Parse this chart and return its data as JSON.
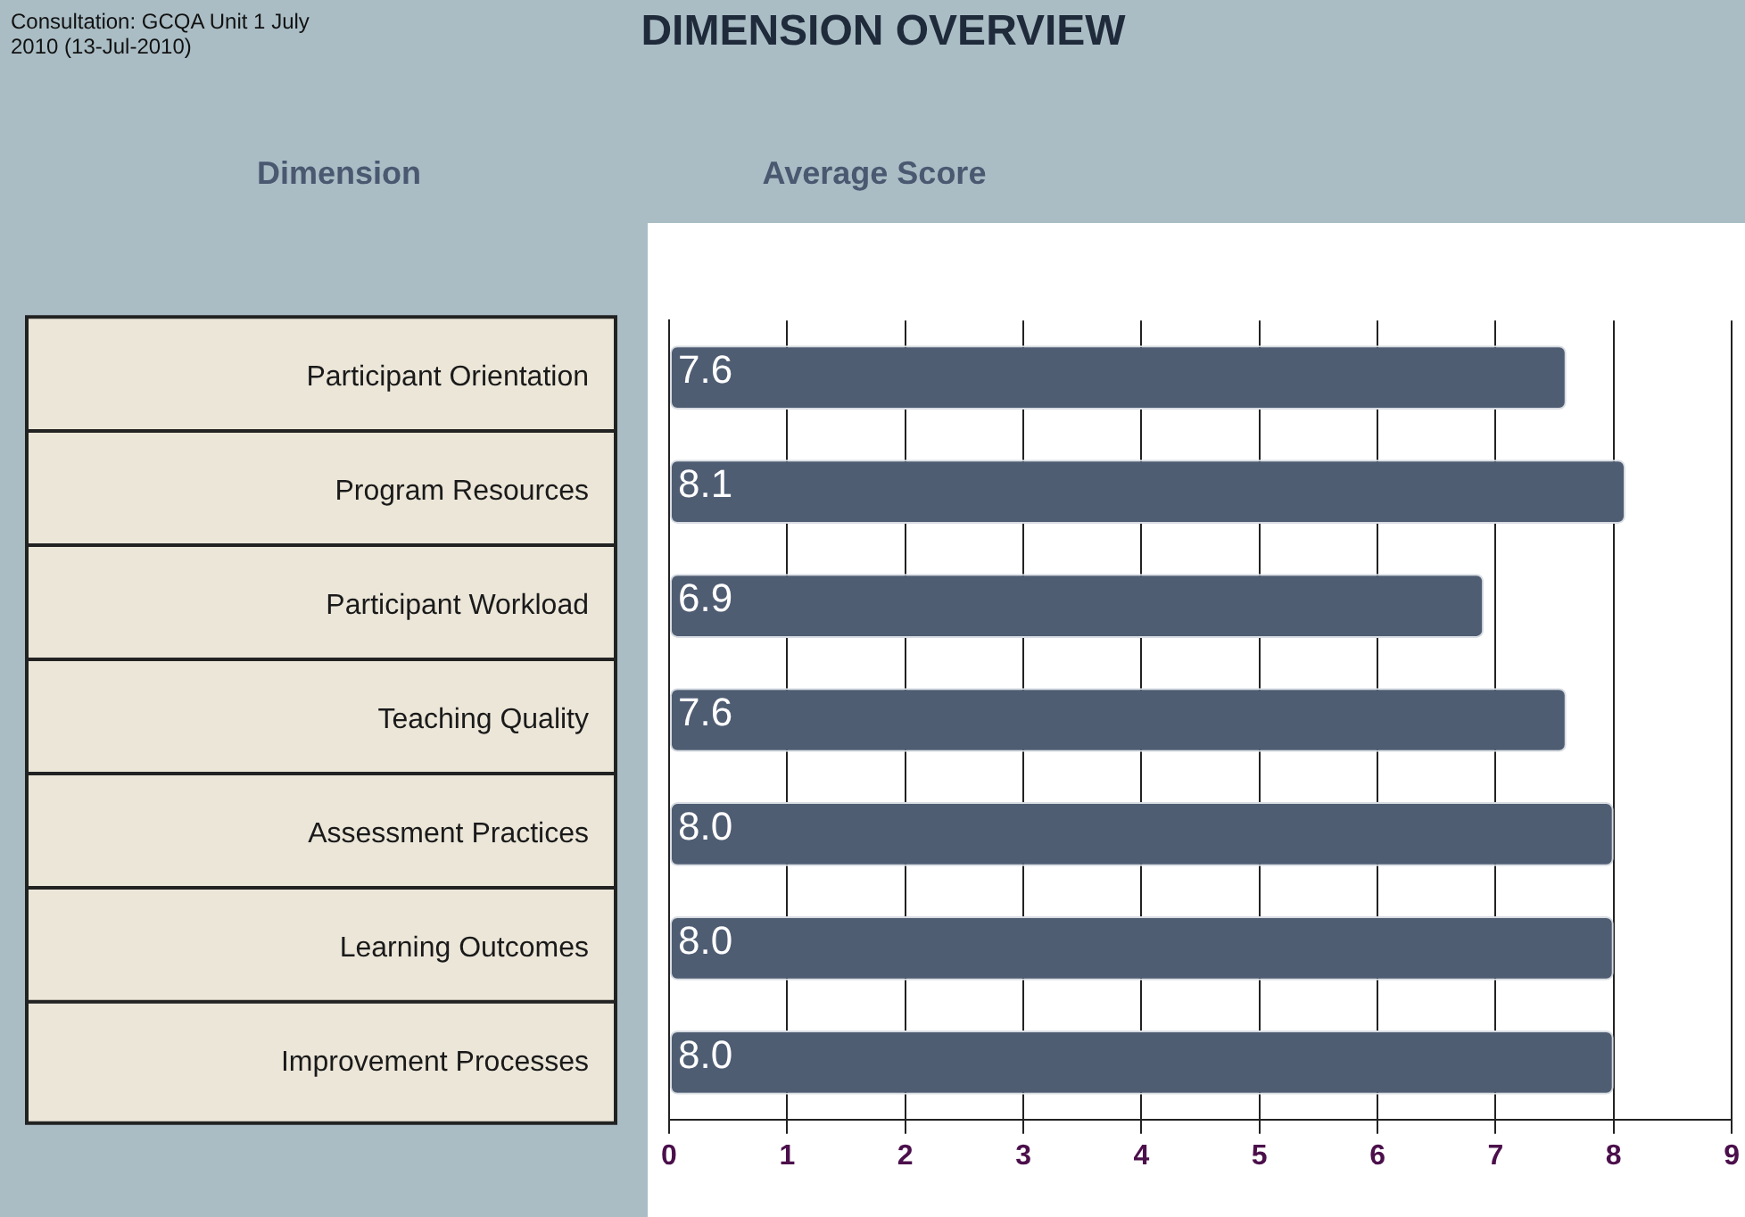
{
  "chart_data": {
    "type": "bar",
    "orientation": "horizontal",
    "title": "DIMENSION OVERVIEW",
    "subtitle": "Consultation: GCQA Unit 1 July 2010 (13-Jul-2010)",
    "xlabel": "Average Score",
    "ylabel": "Dimension",
    "categories": [
      "Participant Orientation",
      "Program Resources",
      "Participant Workload",
      "Teaching Quality",
      "Assessment Practices",
      "Learning Outcomes",
      "Improvement Processes"
    ],
    "values": [
      7.6,
      8.1,
      6.9,
      7.6,
      8.0,
      8.0,
      8.0
    ],
    "color": "#4f5d73",
    "xlim": [
      0,
      9
    ],
    "xticks": [
      0,
      1,
      2,
      3,
      4,
      5,
      6,
      7,
      8,
      9
    ],
    "value_labels": [
      "7.6",
      "8.1",
      "6.9",
      "7.6",
      "8.0",
      "8.0",
      "8.0"
    ],
    "grid": "x",
    "legend": false
  }
}
